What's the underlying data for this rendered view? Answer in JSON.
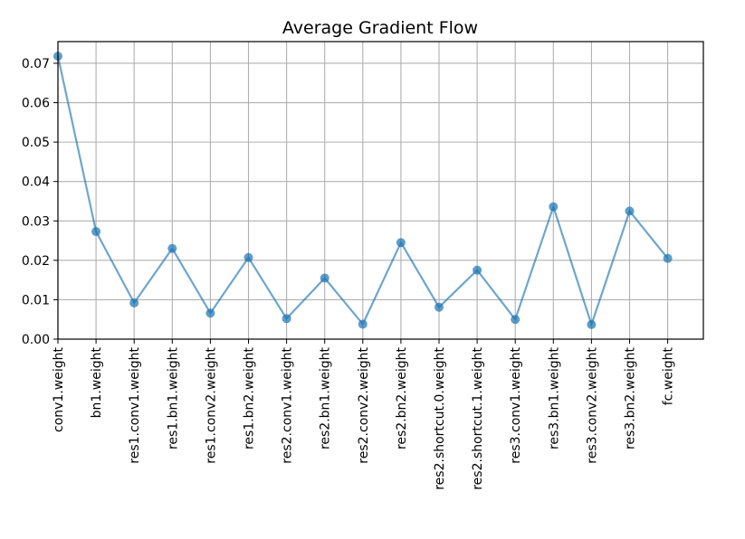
{
  "chart_data": {
    "type": "line",
    "title": "Average Gradient Flow",
    "xlabel": "",
    "ylabel": "",
    "categories": [
      "conv1.weight",
      "bn1.weight",
      "res1.conv1.weight",
      "res1.bn1.weight",
      "res1.conv2.weight",
      "res1.bn2.weight",
      "res2.conv1.weight",
      "res2.bn1.weight",
      "res2.conv2.weight",
      "res2.bn2.weight",
      "res2.shortcut.0.weight",
      "res2.shortcut.1.weight",
      "res3.conv1.weight",
      "res3.bn1.weight",
      "res3.conv2.weight",
      "res3.bn2.weight",
      "fc.weight"
    ],
    "values": [
      0.0718,
      0.0273,
      0.0092,
      0.023,
      0.0066,
      0.0207,
      0.0052,
      0.0155,
      0.0038,
      0.0245,
      0.0081,
      0.0175,
      0.005,
      0.0336,
      0.0037,
      0.0325,
      0.0205
    ],
    "ylim": [
      0.0,
      0.0755
    ],
    "yticks": [
      0.0,
      0.01,
      0.02,
      0.03,
      0.04,
      0.05,
      0.06,
      0.07
    ],
    "ytick_labels": [
      "0.00",
      "0.01",
      "0.02",
      "0.03",
      "0.04",
      "0.05",
      "0.06",
      "0.07"
    ],
    "grid": true,
    "legend": "none",
    "line_color": "#1f77b4"
  }
}
